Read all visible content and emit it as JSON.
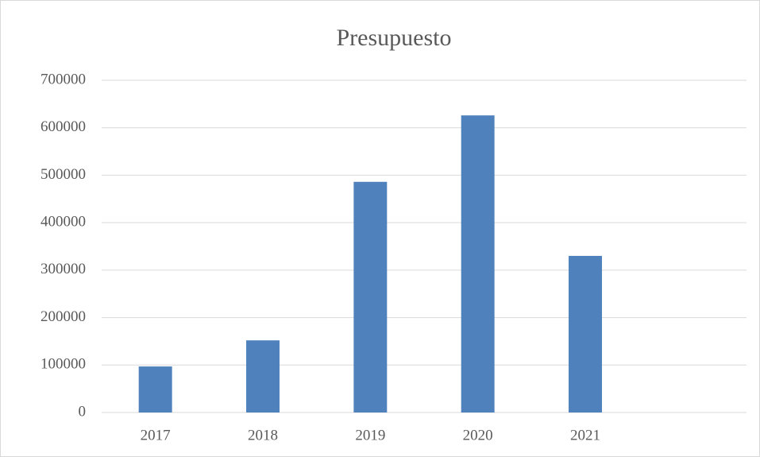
{
  "chart_data": {
    "type": "bar",
    "title": "Presupuesto",
    "categories": [
      "2017",
      "2018",
      "2019",
      "2020",
      "2021",
      null
    ],
    "values": [
      97000,
      152000,
      486000,
      626000,
      330000,
      null
    ],
    "color": "#4f81bd",
    "ylim": [
      0,
      700000
    ],
    "yticks": [
      0,
      100000,
      200000,
      300000,
      400000,
      500000,
      600000,
      700000
    ],
    "grid": true
  }
}
